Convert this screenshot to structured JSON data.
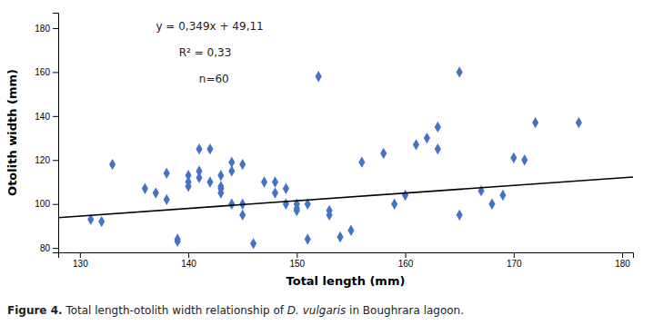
{
  "chart_data": {
    "type": "scatter",
    "title": "",
    "xlabel": "Total length (mm)",
    "ylabel": "Otolith width (mm)",
    "annotations": [
      "y = 0,349x + 49,11",
      "R² = 0,33",
      "n=60"
    ],
    "caption": [
      "Figure 4.",
      " Total length-otolith width relationship of ",
      "D. vulgaris",
      " in Boughrara lagoon."
    ],
    "xlim": [
      128,
      181
    ],
    "ylim": [
      78,
      187
    ],
    "xticks": [
      130,
      140,
      150,
      160,
      170,
      180
    ],
    "yticks": [
      80,
      100,
      120,
      140,
      160,
      180
    ],
    "grid": false,
    "series": [
      {
        "type": "scatter",
        "color": "#4472C4",
        "marker": "diamond",
        "x": [
          131,
          132,
          133,
          136,
          137,
          138,
          138,
          139,
          139,
          140,
          140,
          140,
          141,
          141,
          141,
          142,
          142,
          143,
          143,
          143,
          143,
          144,
          144,
          144,
          145,
          145,
          145,
          146,
          147,
          148,
          148,
          149,
          149,
          150,
          150,
          150,
          151,
          151,
          152,
          153,
          153,
          154,
          155,
          156,
          158,
          159,
          160,
          161,
          162,
          163,
          163,
          165,
          165,
          167,
          168,
          169,
          170,
          171,
          172,
          176
        ],
        "values": [
          93,
          92,
          118,
          107,
          105,
          102,
          114,
          83,
          84,
          113,
          110,
          108,
          125,
          115,
          112,
          125,
          110,
          108,
          107,
          105,
          113,
          100,
          119,
          115,
          95,
          100,
          118,
          82,
          110,
          110,
          105,
          100,
          107,
          98,
          97,
          100,
          84,
          100,
          158,
          97,
          95,
          85,
          88,
          119,
          123,
          100,
          104,
          127,
          130,
          125,
          135,
          95,
          160,
          106,
          100,
          104,
          121,
          120,
          137,
          137
        ]
      },
      {
        "type": "line",
        "color": "black",
        "x": [
          128,
          181
        ],
        "values": [
          93.782,
          112.279
        ]
      }
    ]
  }
}
